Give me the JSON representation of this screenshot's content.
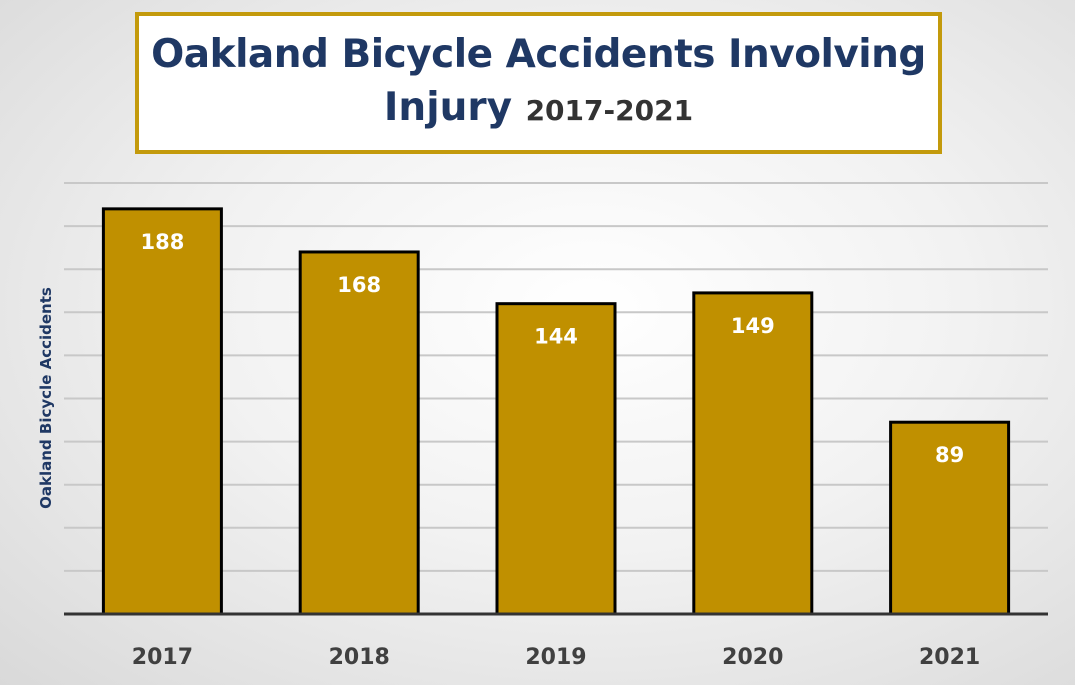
{
  "chart_data": {
    "type": "bar",
    "title": "Oakland Bicycle Accidents Involving Injury",
    "subtitle": "2017-2021",
    "xlabel": "",
    "ylabel": "Oakland Bicycle Accidents",
    "categories": [
      "2017",
      "2018",
      "2019",
      "2020",
      "2021"
    ],
    "values": [
      188,
      168,
      144,
      149,
      89
    ],
    "ylim": [
      0,
      200
    ],
    "y_gridline_step": 20,
    "grid": true,
    "legend": "none",
    "bar_color": "#C09000",
    "bar_border_color": "#000000",
    "title_color": "#1F3864",
    "title_border_color": "#C39A0C"
  }
}
